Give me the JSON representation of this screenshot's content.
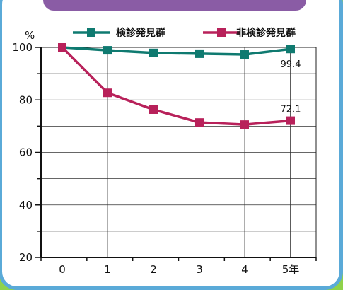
{
  "chart_data": {
    "type": "line",
    "title": "",
    "xlabel": "",
    "ylabel": "%",
    "x": [
      "0",
      "1",
      "2",
      "3",
      "4",
      "5年"
    ],
    "ylim": [
      20,
      100
    ],
    "yticks": [
      "100",
      "80",
      "60",
      "40",
      "20"
    ],
    "grid": true,
    "legend_position": "top",
    "series": [
      {
        "name": "検診発見群",
        "color": "#0f7a70",
        "values": [
          100,
          98.9,
          97.9,
          97.6,
          97.3,
          99.4
        ],
        "end_label": "99.4"
      },
      {
        "name": "非検診発見群",
        "color": "#b8215a",
        "values": [
          100,
          82.7,
          76.3,
          71.4,
          70.6,
          72.1
        ],
        "end_label": "72.1"
      }
    ]
  }
}
